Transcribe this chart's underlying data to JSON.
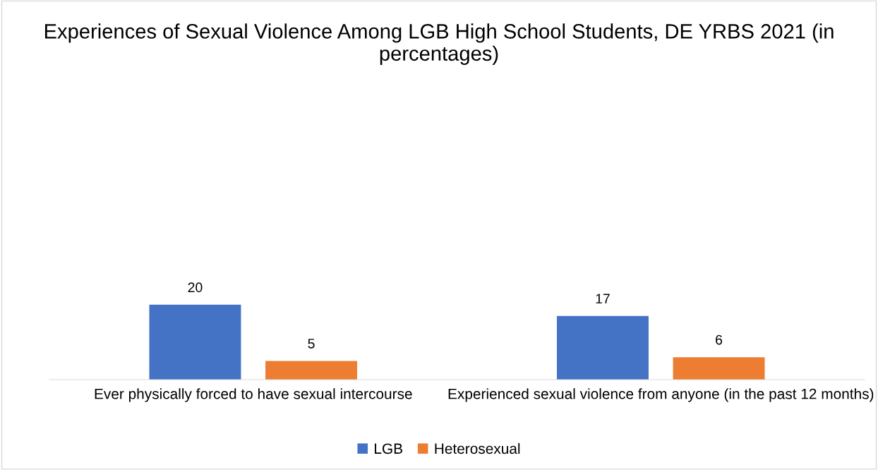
{
  "chart_data": {
    "type": "bar",
    "title": "Experiences of Sexual Violence Among LGB High School Students, DE YRBS 2021 (in percentages)",
    "categories": [
      "Ever physically forced to have sexual intercourse",
      "Experienced sexual violence from anyone (in the past 12 months)"
    ],
    "series": [
      {
        "name": "LGB",
        "color": "#4472c4",
        "values": [
          20,
          17
        ]
      },
      {
        "name": "Heterosexual",
        "color": "#ed7d31",
        "values": [
          5,
          6
        ]
      }
    ],
    "relative": false,
    "data_labels": true,
    "legend": "bottom"
  }
}
